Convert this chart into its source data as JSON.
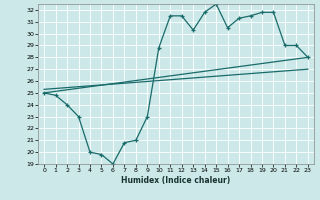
{
  "title": "",
  "xlabel": "Humidex (Indice chaleur)",
  "xlim": [
    -0.5,
    23.5
  ],
  "ylim": [
    19,
    32.5
  ],
  "yticks": [
    19,
    20,
    21,
    22,
    23,
    24,
    25,
    26,
    27,
    28,
    29,
    30,
    31,
    32
  ],
  "xticks": [
    0,
    1,
    2,
    3,
    4,
    5,
    6,
    7,
    8,
    9,
    10,
    11,
    12,
    13,
    14,
    15,
    16,
    17,
    18,
    19,
    20,
    21,
    22,
    23
  ],
  "bg_color": "#cce8e8",
  "line_color": "#1a6b6b",
  "line1_x": [
    0,
    1,
    2,
    3,
    4,
    5,
    6,
    7,
    8,
    9,
    10,
    11,
    12,
    13,
    14,
    15,
    16,
    17,
    18,
    19,
    20,
    21,
    22,
    23
  ],
  "line1_y": [
    25.0,
    24.8,
    24.0,
    23.0,
    20.0,
    19.8,
    19.0,
    20.8,
    21.0,
    23.0,
    28.8,
    31.5,
    31.5,
    30.3,
    31.8,
    32.5,
    30.5,
    31.3,
    31.5,
    31.8,
    31.8,
    29.0,
    29.0,
    28.0
  ],
  "line2_x": [
    0,
    23
  ],
  "line2_y": [
    25.0,
    28.0
  ],
  "line3_x": [
    0,
    23
  ],
  "line3_y": [
    25.3,
    27.0
  ],
  "marker": "+"
}
